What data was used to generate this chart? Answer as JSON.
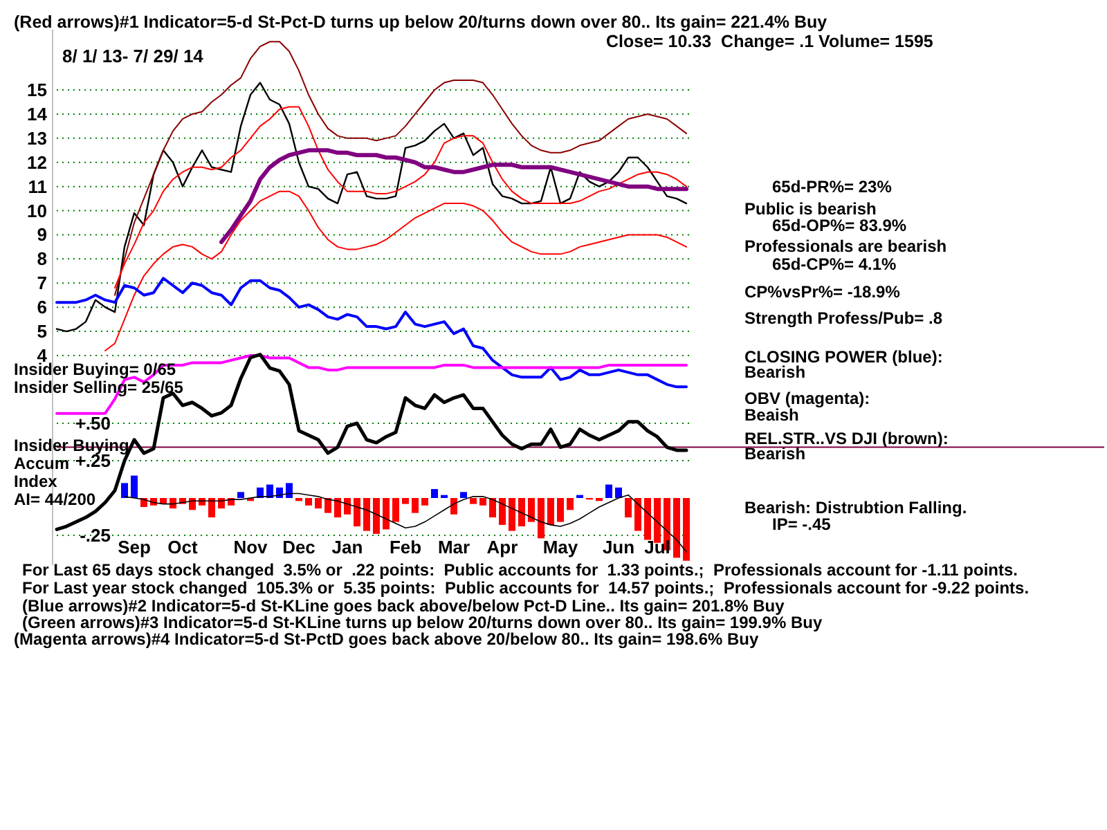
{
  "chart_data": [
    {
      "type": "line",
      "title": "(Red arrows)#1 Indicator=5-d St-Pct-D turns up below 20/turns down over 80.. Its gain= 221.4% Buy",
      "subtitle": "Close= 10.33  Change= .1 Volume= 1595",
      "categories": [
        null,
        null,
        null,
        null,
        null,
        null,
        null,
        null,
        null,
        null,
        null,
        null,
        null,
        null,
        null,
        null,
        null,
        null,
        null,
        null,
        null,
        null,
        null,
        null,
        null,
        null,
        null,
        null,
        null,
        null,
        null,
        null,
        null,
        null,
        null,
        null,
        null,
        null,
        null,
        null,
        null,
        null,
        null,
        null,
        null,
        null,
        null,
        null,
        null,
        null,
        null,
        null,
        null,
        null,
        null,
        null,
        null,
        null,
        null,
        null,
        null,
        null,
        null,
        null,
        null,
        null
      ],
      "grid": "y",
      "ylim": [
        1.5,
        17.5
      ],
      "yticks": [
        4,
        5,
        6,
        7,
        8,
        9,
        10,
        11,
        12,
        13,
        14,
        15
      ],
      "series": [
        {
          "color": "#000000",
          "values": [
            5.1,
            5.0,
            5.1,
            5.4,
            6.3,
            6.0,
            5.8,
            8.5,
            9.9,
            9.4,
            11.5,
            12.5,
            12.0,
            11.0,
            11.8,
            12.5,
            11.8,
            11.7,
            11.6,
            13.5,
            14.8,
            15.3,
            14.6,
            14.4,
            13.6,
            12.0,
            11.0,
            10.9,
            10.5,
            10.3,
            11.5,
            11.6,
            10.6,
            10.5,
            10.5,
            10.6,
            12.6,
            12.7,
            12.9,
            13.3,
            13.6,
            13.0,
            13.2,
            12.3,
            12.6,
            11.1,
            10.6,
            10.5,
            10.3,
            10.3,
            10.4,
            11.8,
            10.3,
            10.5,
            11.6,
            11.2,
            11.0,
            11.2,
            11.6,
            12.2,
            12.2,
            11.8,
            11.2,
            10.6,
            10.5,
            10.3
          ]
        },
        {
          "color": "#8b0000",
          "values": [
            null,
            null,
            null,
            null,
            null,
            null,
            6.5,
            8.0,
            9.5,
            10.5,
            11.5,
            12.5,
            13.3,
            13.8,
            14.0,
            14.1,
            14.5,
            14.8,
            15.2,
            15.5,
            16.3,
            16.8,
            17.0,
            17.0,
            16.6,
            15.8,
            14.8,
            14.0,
            13.4,
            13.1,
            13.0,
            13.0,
            13.0,
            12.9,
            13.0,
            13.1,
            13.5,
            14.0,
            14.5,
            15.0,
            15.3,
            15.4,
            15.4,
            15.4,
            15.3,
            14.8,
            14.2,
            13.6,
            13.1,
            12.7,
            12.5,
            12.4,
            12.4,
            12.5,
            12.7,
            12.8,
            12.9,
            13.2,
            13.5,
            13.8,
            13.9,
            14.0,
            13.9,
            13.8,
            13.5,
            13.2
          ]
        },
        {
          "color": "#ff0000",
          "values": [
            null,
            null,
            null,
            null,
            null,
            null,
            6.8,
            7.8,
            8.6,
            9.5,
            10.0,
            10.8,
            11.3,
            11.6,
            11.8,
            11.8,
            11.7,
            11.8,
            12.2,
            12.5,
            13.0,
            13.5,
            13.8,
            14.2,
            14.3,
            14.3,
            13.5,
            12.5,
            11.7,
            11.2,
            10.8,
            10.8,
            10.8,
            10.7,
            10.7,
            10.8,
            11.0,
            11.2,
            11.5,
            12.0,
            12.8,
            13.0,
            13.1,
            13.1,
            12.8,
            12.0,
            11.3,
            10.8,
            10.5,
            10.3,
            10.3,
            10.3,
            10.3,
            10.3,
            10.4,
            10.6,
            10.8,
            10.9,
            11.1,
            11.3,
            11.5,
            11.6,
            11.6,
            11.5,
            11.3,
            11.0
          ]
        },
        {
          "color": "#ff0000",
          "values": [
            null,
            null,
            null,
            null,
            null,
            4.2,
            4.5,
            5.5,
            6.5,
            7.3,
            7.8,
            8.2,
            8.5,
            8.6,
            8.5,
            8.2,
            8.0,
            8.3,
            9.0,
            9.6,
            10.0,
            10.4,
            10.6,
            10.8,
            10.8,
            10.6,
            10.0,
            9.3,
            8.8,
            8.5,
            8.4,
            8.4,
            8.5,
            8.6,
            8.8,
            9.1,
            9.4,
            9.7,
            9.9,
            10.1,
            10.3,
            10.3,
            10.3,
            10.2,
            10.0,
            9.6,
            9.1,
            8.7,
            8.5,
            8.3,
            8.2,
            8.2,
            8.2,
            8.3,
            8.5,
            8.6,
            8.7,
            8.8,
            8.9,
            9.0,
            9.0,
            9.0,
            9.0,
            8.9,
            8.7,
            8.5
          ]
        },
        {
          "color": "#800080",
          "values": [
            null,
            null,
            null,
            null,
            null,
            null,
            null,
            null,
            null,
            null,
            null,
            null,
            null,
            null,
            null,
            null,
            null,
            8.7,
            9.2,
            9.8,
            10.4,
            11.3,
            11.8,
            12.1,
            12.3,
            12.4,
            12.5,
            12.5,
            12.5,
            12.4,
            12.4,
            12.3,
            12.3,
            12.3,
            12.2,
            12.2,
            12.1,
            12.0,
            11.8,
            11.8,
            11.7,
            11.6,
            11.6,
            11.7,
            11.8,
            11.9,
            11.9,
            11.9,
            11.8,
            11.8,
            11.8,
            11.8,
            11.7,
            11.6,
            11.5,
            11.4,
            11.3,
            11.2,
            11.1,
            11.0,
            11.0,
            11.0,
            10.9,
            10.9,
            10.9,
            10.9
          ]
        },
        {
          "color": "#0000ff",
          "values": [
            6.2,
            6.2,
            6.2,
            6.3,
            6.5,
            6.3,
            6.2,
            6.9,
            6.8,
            6.5,
            6.6,
            7.2,
            6.9,
            6.6,
            7.0,
            6.9,
            6.6,
            6.5,
            6.1,
            6.8,
            7.1,
            7.1,
            6.8,
            6.7,
            6.4,
            6.0,
            6.1,
            5.9,
            5.6,
            5.5,
            5.7,
            5.6,
            5.2,
            5.2,
            5.1,
            5.2,
            5.8,
            5.3,
            5.2,
            5.3,
            5.4,
            4.9,
            5.1,
            4.4,
            4.3,
            3.8,
            3.5,
            3.2,
            3.1,
            3.1,
            3.1,
            3.5,
            3.0,
            3.1,
            3.4,
            3.2,
            3.2,
            3.3,
            3.4,
            3.3,
            3.2,
            3.2,
            3.0,
            2.8,
            2.7,
            2.7
          ]
        },
        {
          "color": "#ff00ff",
          "values": [
            1.6,
            1.6,
            1.6,
            1.6,
            1.6,
            1.6,
            2.2,
            3.0,
            3.1,
            2.9,
            3.2,
            3.6,
            3.6,
            3.6,
            3.7,
            3.7,
            3.7,
            3.7,
            3.8,
            3.9,
            4.0,
            4.0,
            3.9,
            3.9,
            3.9,
            3.7,
            3.5,
            3.5,
            3.4,
            3.4,
            3.5,
            3.5,
            3.5,
            3.5,
            3.5,
            3.5,
            3.5,
            3.5,
            3.5,
            3.5,
            3.6,
            3.6,
            3.6,
            3.5,
            3.5,
            3.5,
            3.5,
            3.5,
            3.5,
            3.5,
            3.5,
            3.5,
            3.5,
            3.5,
            3.5,
            3.5,
            3.5,
            3.6,
            3.6,
            3.6,
            3.6,
            3.6,
            3.6,
            3.6,
            3.6,
            3.6
          ]
        }
      ],
      "annotations": [
        "8/ 1/ 13- 7/ 29/ 14",
        "65d-PR%= 23%",
        "Public is bearish",
        "65d-OP%= 83.9%",
        "Professionals are bearish",
        "65d-CP%= 4.1%",
        "CP%vsPr%= -18.9%",
        "Strength Profess/Pub= .8",
        "CLOSING POWER (blue):",
        "Bearish",
        "OBV (magenta):",
        "Beaish",
        "REL.STR..VS DJI (brown):",
        "Bearish",
        "Bearish: Distrubtion Falling.",
        "IP= -.45"
      ]
    },
    {
      "type": "line",
      "categories": [
        null,
        null,
        null,
        null,
        null,
        null,
        null,
        null,
        "Sep",
        null,
        null,
        null,
        null,
        "Oct",
        null,
        null,
        null,
        null,
        null,
        null,
        "Nov",
        null,
        null,
        null,
        null,
        "Dec",
        null,
        null,
        null,
        null,
        "Jan",
        null,
        null,
        null,
        null,
        null,
        "Feb",
        null,
        null,
        null,
        null,
        "Mar",
        null,
        null,
        null,
        null,
        "Apr",
        null,
        null,
        null,
        null,
        null,
        "May",
        null,
        null,
        null,
        null,
        null,
        "Jun",
        null,
        null,
        null,
        "Jul",
        null,
        null,
        null
      ],
      "grid": "y",
      "ylim": [
        -0.45,
        1.0
      ],
      "yticks": [
        {
          "value": 0.5,
          "label": "+.50"
        },
        {
          "value": 0.25,
          "label": "+.25"
        },
        {
          "value": -0.25,
          "label": "-.25"
        }
      ],
      "ref_lines": [
        {
          "axis": "y",
          "value": 0.34,
          "color": "#800040"
        }
      ],
      "series": [
        {
          "type": "bar",
          "values": [
            null,
            null,
            null,
            null,
            null,
            null,
            null,
            0.1,
            0.15,
            -0.06,
            -0.05,
            -0.04,
            -0.07,
            -0.04,
            -0.08,
            -0.05,
            -0.13,
            -0.07,
            -0.05,
            0.04,
            -0.02,
            0.07,
            0.09,
            0.07,
            0.1,
            -0.02,
            -0.05,
            -0.07,
            -0.1,
            -0.13,
            -0.11,
            -0.19,
            -0.22,
            -0.24,
            -0.21,
            -0.16,
            -0.04,
            -0.1,
            -0.05,
            0.06,
            0.02,
            -0.11,
            0.04,
            -0.04,
            -0.05,
            -0.13,
            -0.18,
            -0.22,
            -0.19,
            -0.16,
            -0.27,
            -0.18,
            -0.16,
            -0.08,
            0.02,
            -0.01,
            -0.02,
            0.09,
            0.07,
            -0.13,
            -0.22,
            -0.28,
            -0.3,
            -0.35,
            -0.4,
            -0.42
          ],
          "colors": [
            null,
            null,
            null,
            null,
            null,
            null,
            null,
            "#0000ff",
            "#0000ff",
            "#ff0000",
            "#ff0000",
            "#ff0000",
            "#ff0000",
            "#ff0000",
            "#ff0000",
            "#ff0000",
            "#ff0000",
            "#ff0000",
            "#ff0000",
            "#0000ff",
            "#ff0000",
            "#0000ff",
            "#0000ff",
            "#0000ff",
            "#0000ff",
            "#ff0000",
            "#ff0000",
            "#ff0000",
            "#ff0000",
            "#ff0000",
            "#ff0000",
            "#ff0000",
            "#ff0000",
            "#ff0000",
            "#ff0000",
            "#ff0000",
            "#ff0000",
            "#ff0000",
            "#ff0000",
            "#0000ff",
            "#0000ff",
            "#ff0000",
            "#0000ff",
            "#ff0000",
            "#ff0000",
            "#ff0000",
            "#ff0000",
            "#ff0000",
            "#ff0000",
            "#ff0000",
            "#ff0000",
            "#ff0000",
            "#ff0000",
            "#ff0000",
            "#0000ff",
            "#ff0000",
            "#ff0000",
            "#0000ff",
            "#0000ff",
            "#ff0000",
            "#ff0000",
            "#ff0000",
            "#ff0000",
            "#ff0000",
            "#ff0000",
            "#ff0000"
          ]
        },
        {
          "color": "#000000",
          "values": [
            null,
            null,
            null,
            null,
            null,
            null,
            null,
            0.01,
            0,
            -0.01,
            -0.03,
            -0.04,
            -0.04,
            -0.03,
            -0.02,
            -0.02,
            -0.02,
            -0.02,
            -0.01,
            -0.01,
            0,
            0.01,
            0.01,
            0.02,
            0.03,
            0.03,
            0.02,
            0.01,
            -0.01,
            -0.02,
            -0.04,
            -0.06,
            -0.08,
            -0.11,
            -0.14,
            -0.17,
            -0.2,
            -0.19,
            -0.16,
            -0.12,
            -0.08,
            -0.04,
            -0.01,
            0.01,
            0.01,
            -0.01,
            -0.04,
            -0.07,
            -0.1,
            -0.13,
            -0.16,
            -0.18,
            -0.19,
            -0.17,
            -0.14,
            -0.1,
            -0.06,
            -0.03,
            0,
            0.02,
            -0.04,
            -0.1,
            -0.16,
            -0.22,
            -0.28,
            -0.36
          ]
        },
        {
          "color": "#000000",
          "values": [
            -0.21,
            -0.19,
            -0.16,
            -0.13,
            -0.09,
            -0.03,
            0.05,
            0.25,
            0.39,
            0.3,
            0.33,
            0.67,
            0.7,
            0.62,
            0.64,
            0.6,
            0.55,
            0.57,
            0.62,
            0.8,
            0.94,
            0.96,
            0.87,
            0.85,
            0.76,
            0.45,
            0.42,
            0.39,
            0.3,
            0.34,
            0.48,
            0.5,
            0.39,
            0.37,
            0.41,
            0.44,
            0.67,
            0.62,
            0.6,
            0.69,
            0.64,
            0.67,
            0.69,
            0.6,
            0.6,
            0.51,
            0.42,
            0.36,
            0.33,
            0.36,
            0.36,
            0.46,
            0.34,
            0.36,
            0.46,
            0.42,
            0.39,
            0.42,
            0.45,
            0.51,
            0.51,
            0.45,
            0.41,
            0.34,
            0.32,
            0.32
          ]
        }
      ],
      "annotations": [
        "Insider Buying= 0/65",
        "Insider Selling= 25/65",
        "Insider Buying",
        "Accum",
        "Index",
        "AI= 44/200",
        "For Last 65 days stock changed  3.5% or  .22 points:  Public accounts for  1.33 points.;  Professionals account for -1.11 points.",
        "For Last year stock changed  105.3% or  5.35 points:  Public accounts for  14.57 points.;  Professionals account for -9.22 points.",
        "(Blue arrows)#2 Indicator=5-d St-KLine goes back above/below Pct-D Line.. Its gain= 201.8% Buy",
        "(Green arrows)#3 Indicator=5-d St-KLine turns up below 20/turns down over 80.. Its gain= 199.9% Buy",
        "(Magenta arrows)#4 Indicator=5-d St-PctD goes back above 20/below 80.. Its gain= 198.6% Buy"
      ]
    }
  ]
}
